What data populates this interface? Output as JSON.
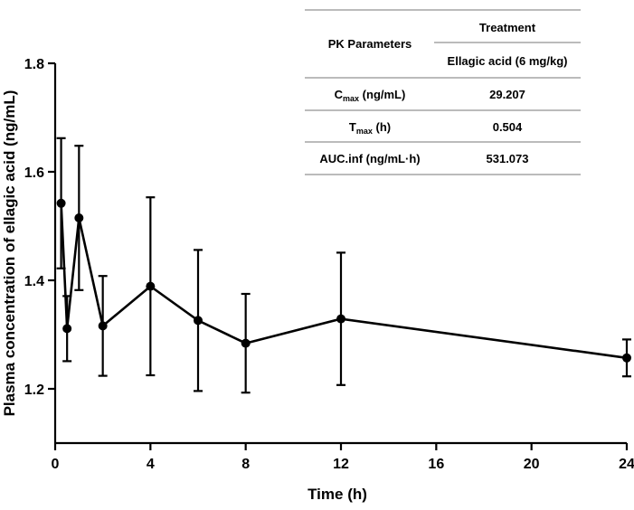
{
  "chart_data": {
    "type": "line",
    "title": "",
    "xlabel": "Time (h)",
    "ylabel": "Plasma concentration of ellagic acid (ng/mL)",
    "xlim": [
      0,
      24
    ],
    "ylim": [
      1.1,
      1.8
    ],
    "xticks": [
      0,
      4,
      8,
      12,
      16,
      20,
      24
    ],
    "yticks": [
      1.2,
      1.4,
      1.6,
      1.8
    ],
    "xtick_labels": [
      "0",
      "4",
      "8",
      "12",
      "16",
      "20",
      "24"
    ],
    "ytick_labels": [
      "1.2",
      "1.4",
      "1.6",
      "1.8"
    ],
    "grid": false,
    "series": [
      {
        "name": "Ellagic acid (6 mg/kg)",
        "color": "#000000",
        "x": [
          0.25,
          0.5,
          1,
          2,
          4,
          6,
          8,
          12,
          24
        ],
        "y": [
          1.542,
          1.311,
          1.515,
          1.316,
          1.389,
          1.326,
          1.284,
          1.329,
          1.257
        ],
        "error": [
          0.12,
          0.06,
          0.133,
          0.092,
          0.164,
          0.13,
          0.091,
          0.122,
          0.034
        ]
      }
    ]
  },
  "table": {
    "header_col1": "PK Parameters",
    "header_col2": "Treatment",
    "subheader": "Ellagic acid (6 mg/kg)",
    "rows": [
      {
        "param_main": "C",
        "param_sub": "max",
        "param_unit": " (ng/mL)",
        "value": "29.207"
      },
      {
        "param_main": "T",
        "param_sub": "max",
        "param_unit": " (h)",
        "value": "0.504"
      },
      {
        "param_main": "AUC.inf (ng/mL·h)",
        "param_sub": "",
        "param_unit": "",
        "value": "531.073"
      }
    ]
  }
}
